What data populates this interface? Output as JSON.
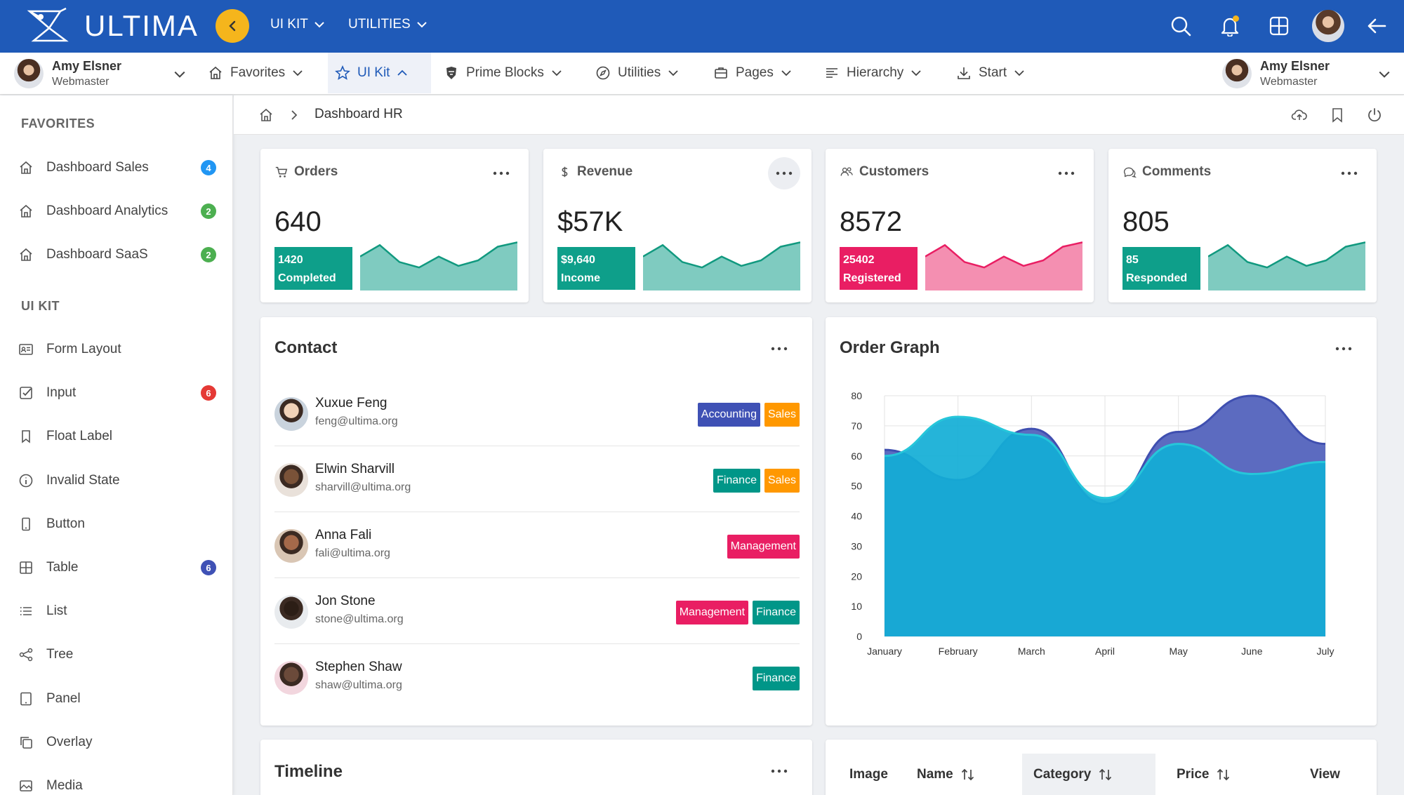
{
  "brand": {
    "name": "ULTIMA"
  },
  "topbar": {
    "menus": [
      {
        "label": "UI KIT"
      },
      {
        "label": "UTILITIES"
      }
    ]
  },
  "user": {
    "name": "Amy Elsner",
    "role": "Webmaster"
  },
  "menubar": {
    "items": [
      {
        "label": "Favorites",
        "icon": "home-icon"
      },
      {
        "label": "UI Kit",
        "icon": "star-icon",
        "active": true
      },
      {
        "label": "Prime Blocks",
        "icon": "prime-icon"
      },
      {
        "label": "Utilities",
        "icon": "compass-icon"
      },
      {
        "label": "Pages",
        "icon": "briefcase-icon"
      },
      {
        "label": "Hierarchy",
        "icon": "align-left-icon"
      },
      {
        "label": "Start",
        "icon": "download-icon"
      }
    ]
  },
  "sidebar": {
    "favorites_title": "FAVORITES",
    "favorites": [
      {
        "label": "Dashboard Sales",
        "badge": "4",
        "badge_color": "#2196f3"
      },
      {
        "label": "Dashboard Analytics",
        "badge": "2",
        "badge_color": "#4caf50"
      },
      {
        "label": "Dashboard SaaS",
        "badge": "2",
        "badge_color": "#4caf50"
      }
    ],
    "uikit_title": "UI KIT",
    "uikit": [
      {
        "label": "Form Layout",
        "icon": "id-card-icon"
      },
      {
        "label": "Input",
        "icon": "check-square-icon",
        "badge": "6",
        "badge_color": "#e53935"
      },
      {
        "label": "Float Label",
        "icon": "bookmark-icon"
      },
      {
        "label": "Invalid State",
        "icon": "info-circle-icon"
      },
      {
        "label": "Button",
        "icon": "mobile-icon"
      },
      {
        "label": "Table",
        "icon": "table-icon",
        "badge": "6",
        "badge_color": "#3f51b5"
      },
      {
        "label": "List",
        "icon": "list-icon"
      },
      {
        "label": "Tree",
        "icon": "share-icon"
      },
      {
        "label": "Panel",
        "icon": "tablet-icon"
      },
      {
        "label": "Overlay",
        "icon": "clone-icon"
      },
      {
        "label": "Media",
        "icon": "image-icon"
      }
    ]
  },
  "breadcrumb": {
    "current": "Dashboard HR"
  },
  "kpis": [
    {
      "title": "Orders",
      "icon": "cart-icon",
      "value": "640",
      "box_top": "1420",
      "box_bottom": "Completed",
      "color": "#0e9f8a",
      "fill": "#7fcbc0",
      "stroke": "#11997f",
      "trend": [
        0.62,
        0.83,
        0.52,
        0.42,
        0.62,
        0.45,
        0.55,
        0.8,
        0.88
      ]
    },
    {
      "title": "Revenue",
      "icon": "dollar-icon",
      "value": "$57K",
      "box_top": "$9,640",
      "box_bottom": "Income",
      "color": "#0e9f8a",
      "fill": "#7fcbc0",
      "stroke": "#11997f",
      "trend": [
        0.62,
        0.83,
        0.52,
        0.42,
        0.62,
        0.45,
        0.55,
        0.8,
        0.88
      ]
    },
    {
      "title": "Customers",
      "icon": "users-icon",
      "value": "8572",
      "box_top": "25402",
      "box_bottom": "Registered",
      "color": "#e91e63",
      "fill": "#f48fb1",
      "stroke": "#e91e63",
      "trend": [
        0.62,
        0.83,
        0.52,
        0.42,
        0.62,
        0.45,
        0.55,
        0.8,
        0.88
      ]
    },
    {
      "title": "Comments",
      "icon": "comments-icon",
      "value": "805",
      "box_top": "85",
      "box_bottom": "Responded",
      "color": "#0e9f8a",
      "fill": "#7fcbc0",
      "stroke": "#11997f",
      "trend": [
        0.62,
        0.83,
        0.52,
        0.42,
        0.62,
        0.45,
        0.55,
        0.8,
        0.88
      ]
    }
  ],
  "contact": {
    "title": "Contact",
    "people": [
      {
        "name": "Xuxue Feng",
        "email": "feng@ultima.org",
        "tags": [
          {
            "label": "Accounting",
            "color": "#3f51b5"
          },
          {
            "label": "Sales",
            "color": "#ff9800"
          }
        ]
      },
      {
        "name": "Elwin Sharvill",
        "email": "sharvill@ultima.org",
        "tags": [
          {
            "label": "Finance",
            "color": "#009688"
          },
          {
            "label": "Sales",
            "color": "#ff9800"
          }
        ]
      },
      {
        "name": "Anna Fali",
        "email": "fali@ultima.org",
        "tags": [
          {
            "label": "Management",
            "color": "#e91e63"
          }
        ]
      },
      {
        "name": "Jon Stone",
        "email": "stone@ultima.org",
        "tags": [
          {
            "label": "Management",
            "color": "#e91e63"
          },
          {
            "label": "Finance",
            "color": "#009688"
          }
        ]
      },
      {
        "name": "Stephen Shaw",
        "email": "shaw@ultima.org",
        "tags": [
          {
            "label": "Finance",
            "color": "#009688"
          }
        ]
      }
    ]
  },
  "chart_data": {
    "type": "area",
    "title": "Order Graph",
    "categories": [
      "January",
      "February",
      "March",
      "April",
      "May",
      "June",
      "July"
    ],
    "ylim": [
      0,
      80
    ],
    "yticks": [
      0,
      10,
      20,
      30,
      40,
      50,
      60,
      70,
      80
    ],
    "grid": true,
    "series": [
      {
        "values": [
          62,
          52,
          69,
          44,
          68,
          80,
          64
        ],
        "color": "#3f4fb0",
        "fill": "#5c6bc0"
      },
      {
        "values": [
          60,
          73,
          67,
          46,
          64,
          54,
          58
        ],
        "color": "#26c6da",
        "fill": "#12aed6"
      }
    ]
  },
  "timeline": {
    "title": "Timeline"
  },
  "table": {
    "headers": [
      {
        "label": "Image",
        "sortable": false
      },
      {
        "label": "Name",
        "sortable": true
      },
      {
        "label": "Category",
        "sortable": true,
        "active": true
      },
      {
        "label": "Price",
        "sortable": true
      },
      {
        "label": "View",
        "sortable": false
      }
    ]
  }
}
